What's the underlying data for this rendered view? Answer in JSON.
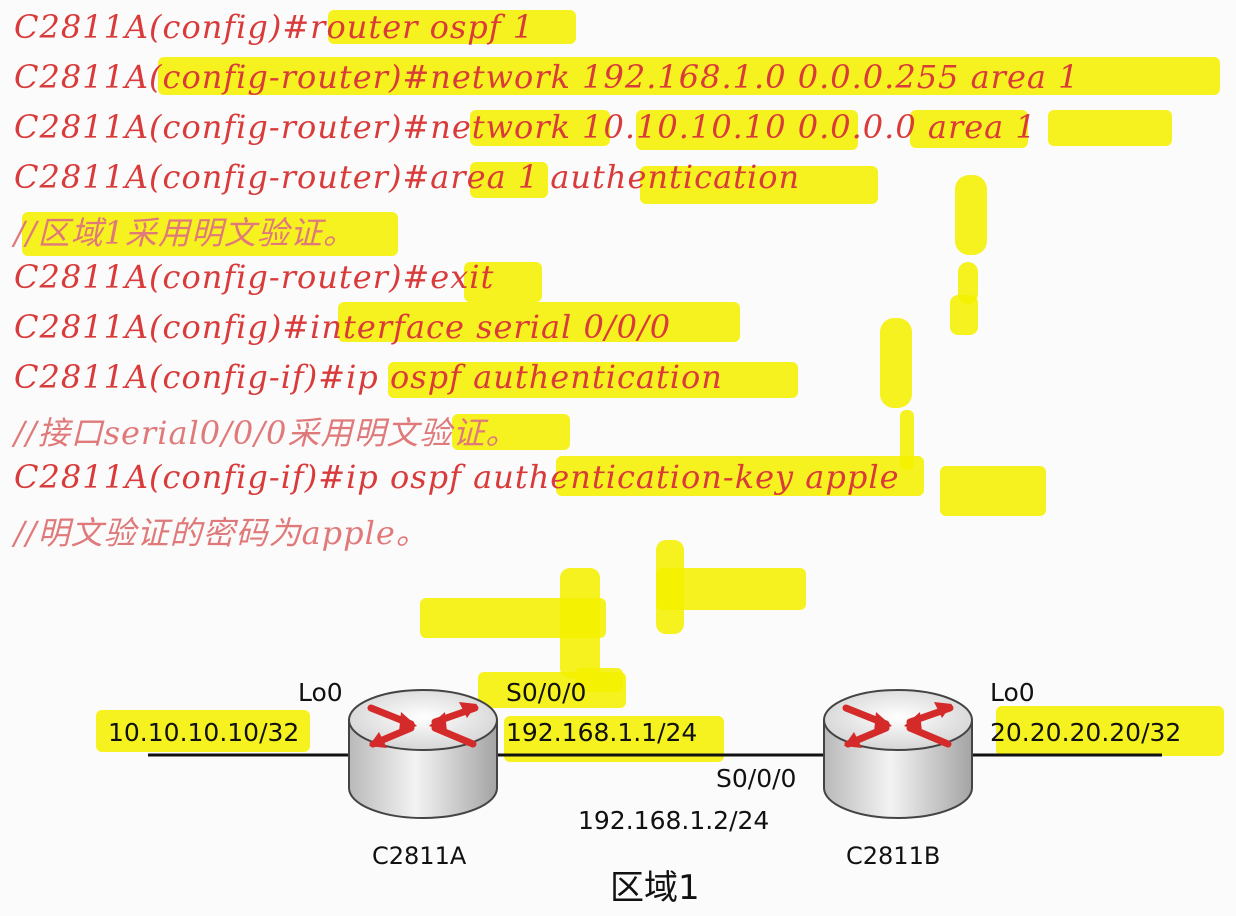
{
  "commands": [
    {
      "prompt": "C2811A(config)#",
      "cmd": "router ospf 1",
      "type": "command"
    },
    {
      "prompt": "C2811A(config-router)#",
      "cmd": "network 192.168.1.0 0.0.0.255 area 1",
      "type": "command"
    },
    {
      "prompt": "C2811A(config-router)#",
      "cmd": "network 10.10.10.10 0.0.0.0 area 1",
      "type": "command"
    },
    {
      "prompt": "C2811A(config-router)#",
      "cmd": "area 1 authentication",
      "type": "command"
    },
    {
      "text": "//区域1采用明文验证。",
      "type": "comment"
    },
    {
      "prompt": "C2811A(config-router)#",
      "cmd": "exit",
      "type": "command"
    },
    {
      "prompt": "C2811A(config)#",
      "cmd": "interface serial 0/0/0",
      "type": "command"
    },
    {
      "prompt": "C2811A(config-if)#",
      "cmd": "ip ospf authentication",
      "type": "command"
    },
    {
      "text": "//接口serial0/0/0采用明文验证。",
      "type": "comment"
    },
    {
      "prompt": "C2811A(config-if)#",
      "cmd": "ip ospf authentication-key apple",
      "type": "command"
    },
    {
      "text": "//明文验证的密码为apple。",
      "type": "comment"
    }
  ],
  "diagram": {
    "router_a": {
      "name": "C2811A",
      "lo_label": "Lo0",
      "lo_ip": "10.10.10.10/32",
      "serial_label": "S0/0/0",
      "serial_ip": "192.168.1.1/24"
    },
    "router_b": {
      "name": "C2811B",
      "lo_label": "Lo0",
      "lo_ip": "20.20.20.20/32",
      "serial_label": "S0/0/0",
      "serial_ip": "192.168.1.2/24"
    },
    "area_label": "区域1"
  },
  "colors": {
    "command_text": "#d93a3a",
    "comment_text": "#e07a7a",
    "highlight": "#f5f000",
    "router_arrow": "#d42a2a"
  }
}
